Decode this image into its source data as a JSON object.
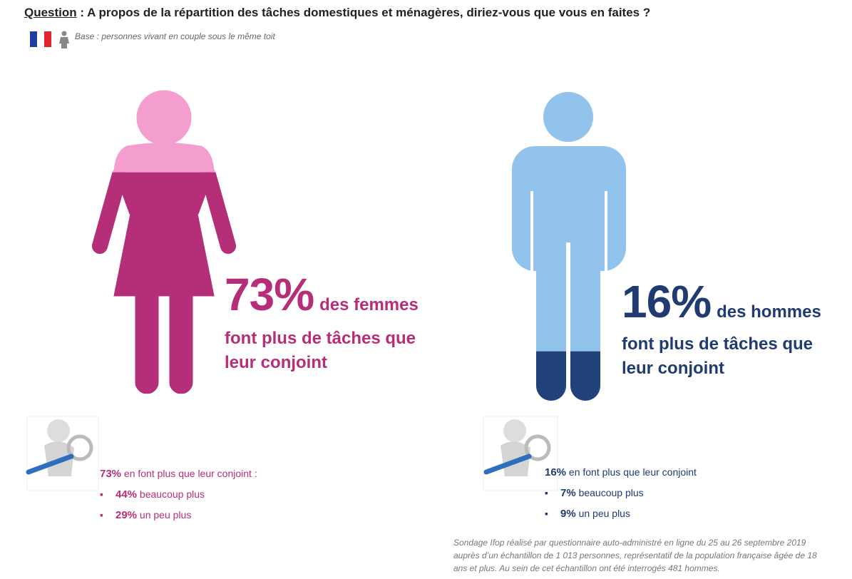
{
  "header": {
    "question_label": "Question",
    "question_text": " : A propos de la répartition des tâches domestiques et ménagères, diriez-vous que vous en faites ?",
    "base": "Base : personnes vivant en couple sous le même toit"
  },
  "panels": [
    {
      "percent": {
        "value": 73,
        "label": "73%"
      },
      "group": "des femmes",
      "statement": "font plus de tâches que leur conjoint",
      "detail_percent": "73%",
      "detail_text": " en font plus que leur conjoint :",
      "bullets": [
        {
          "percent": "44%",
          "text": " beaucoup plus"
        },
        {
          "percent": "29%",
          "text": " un peu plus"
        }
      ]
    },
    {
      "percent": {
        "value": 16,
        "label": "16%"
      },
      "group": "des hommes",
      "statement": "font plus de tâches que leur conjoint",
      "detail_percent": "16%",
      "detail_text": " en font plus que leur conjoint",
      "bullets": [
        {
          "percent": "7%",
          "text": " beaucoup plus"
        },
        {
          "percent": "9%",
          "text": " un peu plus"
        }
      ]
    }
  ],
  "footnote": "Sondage Ifop réalisé par questionnaire auto-administré en ligne du 25 au 26 septembre 2019 auprès d’un échantillon de 1 013 personnes, représentatif de la population française âgée de 18 ans et plus. Au sein de cet échantillon ont été interrogés 481 hommes."
}
